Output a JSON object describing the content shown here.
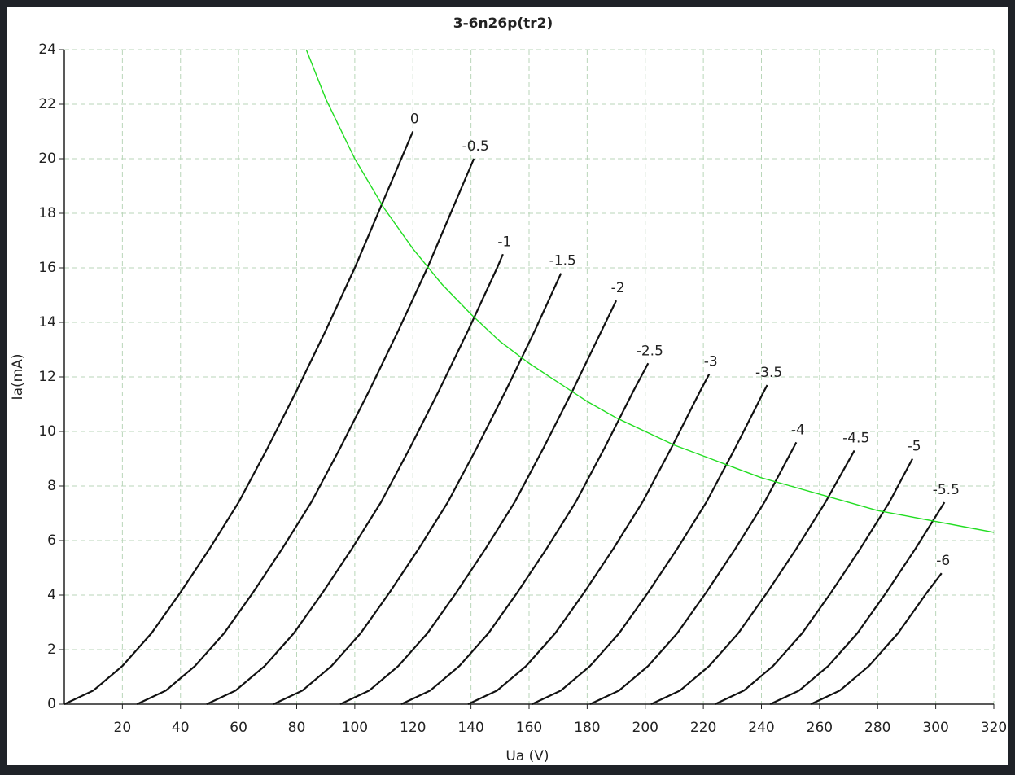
{
  "chart_data": {
    "type": "line",
    "title": "3-6n26p(tr2)",
    "x_label": "Ua (V)",
    "y_label": "Ia(mA)",
    "xlim": [
      0,
      320
    ],
    "ylim": [
      0,
      24
    ],
    "xticks": [
      20,
      40,
      60,
      80,
      100,
      120,
      140,
      160,
      180,
      200,
      220,
      240,
      260,
      280,
      300,
      320
    ],
    "yticks": [
      0,
      2,
      4,
      6,
      8,
      10,
      12,
      14,
      16,
      18,
      20,
      22,
      24
    ],
    "grid": true,
    "series": [
      {
        "name": "0",
        "color": "#111111",
        "x": [
          0,
          10,
          20,
          30,
          40,
          50,
          60,
          70,
          80,
          90,
          100,
          110,
          120
        ],
        "values": [
          0,
          0.5,
          1.4,
          2.6,
          4.1,
          5.7,
          7.4,
          9.4,
          11.5,
          13.7,
          16,
          18.5,
          21
        ]
      },
      {
        "name": "-0.5",
        "color": "#111111",
        "x": [
          25,
          35,
          45,
          55,
          65,
          75,
          85,
          95,
          105,
          115,
          125,
          135,
          141
        ],
        "values": [
          0,
          0.5,
          1.4,
          2.6,
          4.1,
          5.7,
          7.4,
          9.4,
          11.5,
          13.7,
          16,
          18.5,
          20
        ]
      },
      {
        "name": "-1",
        "color": "#111111",
        "x": [
          49,
          59,
          69,
          79,
          89,
          99,
          109,
          119,
          129,
          139,
          149,
          151
        ],
        "values": [
          0,
          0.5,
          1.4,
          2.6,
          4.1,
          5.7,
          7.4,
          9.4,
          11.5,
          13.7,
          16,
          16.5
        ]
      },
      {
        "name": "-1.5",
        "color": "#111111",
        "x": [
          72,
          82,
          92,
          102,
          112,
          122,
          132,
          142,
          152,
          162,
          171
        ],
        "values": [
          0,
          0.5,
          1.4,
          2.6,
          4.1,
          5.7,
          7.4,
          9.4,
          11.5,
          13.7,
          15.8
        ]
      },
      {
        "name": "-2",
        "color": "#111111",
        "x": [
          95,
          105,
          115,
          125,
          135,
          145,
          155,
          165,
          175,
          185,
          190
        ],
        "values": [
          0,
          0.5,
          1.4,
          2.6,
          4.1,
          5.7,
          7.4,
          9.4,
          11.5,
          13.7,
          14.8
        ]
      },
      {
        "name": "-2.5",
        "color": "#111111",
        "x": [
          116,
          126,
          136,
          146,
          156,
          166,
          176,
          186,
          196,
          201
        ],
        "values": [
          0,
          0.5,
          1.4,
          2.6,
          4.1,
          5.7,
          7.4,
          9.4,
          11.5,
          12.5
        ]
      },
      {
        "name": "-3",
        "color": "#111111",
        "x": [
          139,
          149,
          159,
          169,
          179,
          189,
          199,
          209,
          219,
          222
        ],
        "values": [
          0,
          0.5,
          1.4,
          2.6,
          4.1,
          5.7,
          7.4,
          9.4,
          11.5,
          12.1
        ]
      },
      {
        "name": "-3.5",
        "color": "#111111",
        "x": [
          161,
          171,
          181,
          191,
          201,
          211,
          221,
          231,
          241,
          242
        ],
        "values": [
          0,
          0.5,
          1.4,
          2.6,
          4.1,
          5.7,
          7.4,
          9.4,
          11.5,
          11.7
        ]
      },
      {
        "name": "-4",
        "color": "#111111",
        "x": [
          181,
          191,
          201,
          211,
          221,
          231,
          241,
          251,
          252
        ],
        "values": [
          0,
          0.5,
          1.4,
          2.6,
          4.1,
          5.7,
          7.4,
          9.4,
          9.6
        ]
      },
      {
        "name": "-4.5",
        "color": "#111111",
        "x": [
          202,
          212,
          222,
          232,
          242,
          252,
          262,
          272
        ],
        "values": [
          0,
          0.5,
          1.4,
          2.6,
          4.1,
          5.7,
          7.4,
          9.3
        ]
      },
      {
        "name": "-5",
        "color": "#111111",
        "x": [
          224,
          234,
          244,
          254,
          264,
          274,
          284,
          292
        ],
        "values": [
          0,
          0.5,
          1.4,
          2.6,
          4.1,
          5.7,
          7.4,
          9
        ]
      },
      {
        "name": "-5.5",
        "color": "#111111",
        "x": [
          243,
          253,
          263,
          273,
          283,
          293,
          303
        ],
        "values": [
          0,
          0.5,
          1.4,
          2.6,
          4.1,
          5.7,
          7.4
        ]
      },
      {
        "name": "-6",
        "color": "#111111",
        "x": [
          257,
          267,
          277,
          287,
          297,
          302
        ],
        "values": [
          0,
          0.5,
          1.4,
          2.6,
          4.1,
          4.8
        ]
      },
      {
        "color": "#22dd22",
        "x": [
          83.3,
          90,
          100,
          110,
          120,
          130,
          140,
          150,
          160,
          170,
          180,
          190,
          200,
          210,
          220,
          230,
          240,
          250,
          260,
          270,
          280,
          290,
          300,
          310,
          320
        ],
        "values": [
          24,
          22.2,
          20,
          18.2,
          16.7,
          15.4,
          14.3,
          13.3,
          12.5,
          11.8,
          11.1,
          10.5,
          10,
          9.5,
          9.1,
          8.7,
          8.3,
          8,
          7.7,
          7.4,
          7.1,
          6.9,
          6.7,
          6.5,
          6.3
        ]
      }
    ]
  }
}
